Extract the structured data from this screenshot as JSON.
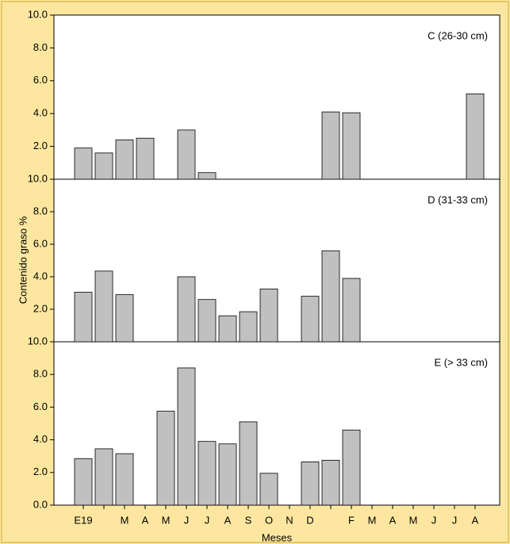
{
  "chart_data": {
    "type": "bar",
    "x_label": "Meses",
    "y_label": "Contenido graso %",
    "color": "#c0c0c0",
    "categories": [
      "E19",
      null,
      "M",
      "A",
      "M",
      "J",
      "J",
      "A",
      "S",
      "O",
      "N",
      "D",
      null,
      "F",
      "M",
      "A",
      "M",
      "J",
      "J",
      "A"
    ],
    "panels": [
      {
        "title": "C (26-30 cm)",
        "ylim": [
          0,
          10
        ],
        "yticks": [
          {
            "value": 2,
            "label": "2.0"
          },
          {
            "value": 4,
            "label": "4.0"
          },
          {
            "value": 6,
            "label": "6.0"
          },
          {
            "value": 8,
            "label": "8.0"
          },
          {
            "value": 10,
            "label": "10.0"
          }
        ],
        "values": [
          1.9,
          1.6,
          2.4,
          2.5,
          null,
          3.0,
          0.4,
          null,
          null,
          null,
          null,
          null,
          4.1,
          4.05,
          null,
          null,
          null,
          null,
          null,
          5.2
        ]
      },
      {
        "title": "D (31-33 cm)",
        "ylim": [
          0,
          10
        ],
        "yticks": [
          {
            "value": 2,
            "label": "2.0"
          },
          {
            "value": 4,
            "label": "4.0"
          },
          {
            "value": 6,
            "label": "6.0"
          },
          {
            "value": 8,
            "label": "8.0"
          },
          {
            "value": 10,
            "label": "10.0"
          }
        ],
        "values": [
          3.05,
          4.35,
          2.9,
          null,
          null,
          4.0,
          2.6,
          1.6,
          1.85,
          3.25,
          null,
          2.8,
          5.6,
          3.9,
          null,
          null,
          null,
          null,
          null,
          null
        ]
      },
      {
        "title": "E (> 33 cm)",
        "ylim": [
          0,
          10
        ],
        "yticks": [
          {
            "value": 0,
            "label": "0.0"
          },
          {
            "value": 2,
            "label": "2.0"
          },
          {
            "value": 4,
            "label": "4.0"
          },
          {
            "value": 6,
            "label": "6.0"
          },
          {
            "value": 8,
            "label": "8.0"
          },
          {
            "value": 10,
            "label": "10.0"
          }
        ],
        "values": [
          2.85,
          3.45,
          3.15,
          null,
          5.75,
          8.4,
          3.9,
          3.75,
          5.1,
          1.95,
          null,
          2.65,
          2.75,
          4.6,
          null,
          null,
          null,
          null,
          null,
          null
        ]
      }
    ]
  }
}
